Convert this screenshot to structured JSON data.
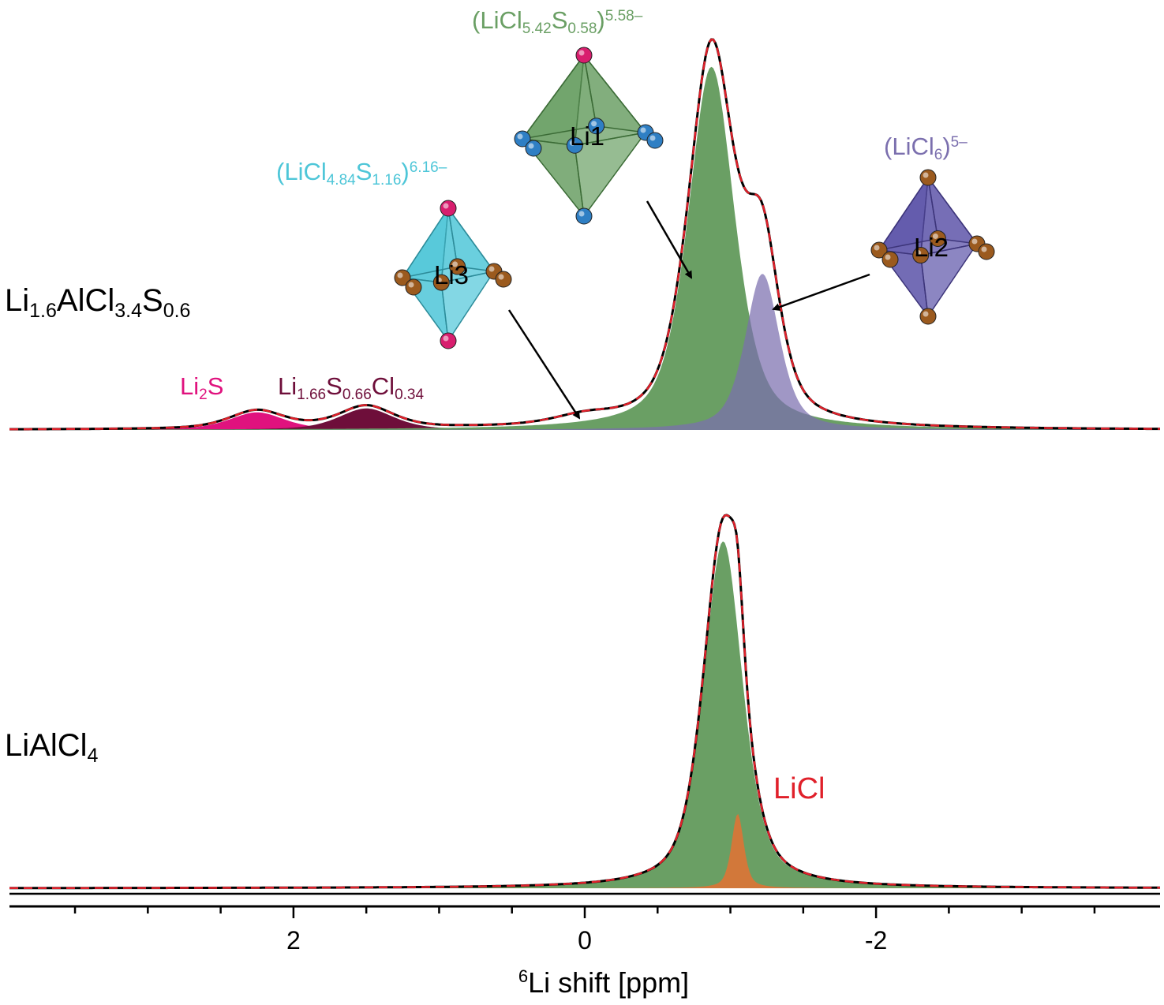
{
  "chart_data": {
    "type": "area",
    "title": "",
    "xlabel": {
      "sup": "6",
      "text": "Li shift [ppm]"
    },
    "ylabel": "",
    "x_reversed": true,
    "xlim": [
      3.95,
      -3.95
    ],
    "x_ticks": [
      2,
      0,
      -2
    ],
    "x_tick_labels": [
      "2",
      "0",
      "-2"
    ],
    "x_minor_step": 0.5,
    "grid": false,
    "colors": {
      "li1": "#6a9f64",
      "li2": "#7b6fae",
      "li3": "#4ec6d8",
      "li2s": "#e0127e",
      "lisc": "#6e0e3a",
      "licl": "#d2783a",
      "experimental": "#000000",
      "fit": "#e0202a"
    },
    "spectra": [
      {
        "sample": {
          "parts": [
            [
              "Li",
              ""
            ],
            [
              "1.6",
              "sub"
            ],
            [
              "AlCl",
              ""
            ],
            [
              "3.4",
              "sub"
            ],
            [
              "S",
              ""
            ],
            [
              "0.6",
              "sub"
            ]
          ]
        },
        "components": [
          {
            "id": "li2s",
            "label": {
              "parts": [
                [
                  "Li",
                  ""
                ],
                [
                  "2",
                  "sub"
                ],
                [
                  "S",
                  ""
                ]
              ]
            },
            "center_ppm": 2.25,
            "fwhm_ppm": 0.45,
            "height": 0.045
          },
          {
            "id": "lisc",
            "label": {
              "parts": [
                [
                  "Li",
                  ""
                ],
                [
                  "1.66",
                  "sub"
                ],
                [
                  "S",
                  ""
                ],
                [
                  "0.66",
                  "sub"
                ],
                [
                  "Cl",
                  ""
                ],
                [
                  "0.34",
                  "sub"
                ]
              ]
            },
            "center_ppm": 1.5,
            "fwhm_ppm": 0.45,
            "height": 0.055
          },
          {
            "id": "li3",
            "site": "Li3",
            "label": {
              "parts": [
                [
                  "(LiCl",
                  ""
                ],
                [
                  "4.84",
                  "sub"
                ],
                [
                  "S",
                  ""
                ],
                [
                  "1.16",
                  "sub"
                ],
                [
                  ")",
                  ""
                ],
                [
                  "6.16–",
                  "sup"
                ]
              ]
            },
            "center_ppm": 0.0,
            "fwhm_ppm": 0.5,
            "height": 0.02
          },
          {
            "id": "li1",
            "site": "Li1",
            "label": {
              "parts": [
                [
                  "(LiCl",
                  ""
                ],
                [
                  "5.42",
                  "sub"
                ],
                [
                  "S",
                  ""
                ],
                [
                  "0.58",
                  "sub"
                ],
                [
                  ")",
                  ""
                ],
                [
                  "5.58–",
                  "sup"
                ]
              ]
            },
            "center_ppm": -0.87,
            "fwhm_ppm": 0.38,
            "height": 0.93
          },
          {
            "id": "li2",
            "site": "Li2",
            "label": {
              "parts": [
                [
                  "(LiCl",
                  ""
                ],
                [
                  "6",
                  "sub"
                ],
                [
                  ")",
                  ""
                ],
                [
                  "5–",
                  "sup"
                ]
              ]
            },
            "center_ppm": -1.22,
            "fwhm_ppm": 0.28,
            "height": 0.4
          }
        ],
        "experimental_max": 1.0
      },
      {
        "sample": {
          "parts": [
            [
              "LiAlCl",
              ""
            ],
            [
              "4",
              "sub"
            ]
          ]
        },
        "components": [
          {
            "id": "li1",
            "center_ppm": -0.95,
            "fwhm_ppm": 0.32,
            "height": 0.93
          },
          {
            "id": "licl",
            "label": {
              "parts": [
                [
                  "LiCl",
                  ""
                ]
              ]
            },
            "center_ppm": -1.05,
            "fwhm_ppm": 0.1,
            "height": 0.2
          }
        ],
        "experimental_max": 1.0
      }
    ]
  }
}
